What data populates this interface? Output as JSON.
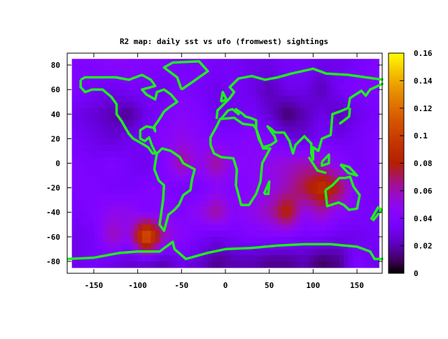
{
  "chart_data": {
    "type": "heatmap",
    "title": "R2 map: daily sst vs ufo (fromwest) sightings",
    "xlabel": "",
    "ylabel": "",
    "xlim": [
      -180,
      180
    ],
    "ylim": [
      -90,
      90
    ],
    "xticks": [
      "-150",
      "-100",
      "-50",
      "0",
      "50",
      "100",
      "150"
    ],
    "yticks": [
      "80",
      "60",
      "40",
      "20",
      "0",
      "-20",
      "-40",
      "-60",
      "-80"
    ],
    "colorbar": {
      "range": [
        0,
        0.16
      ],
      "ticks": [
        "0",
        "0.02",
        "0.04",
        "0.06",
        "0.08",
        "0.1",
        "0.12",
        "0.14",
        "0.16"
      ],
      "palette": "black-blue-purple-red-orange-yellow"
    },
    "grid_lon_centers": [
      -170,
      -150,
      -130,
      -110,
      -90,
      -70,
      -50,
      -30,
      -10,
      10,
      30,
      50,
      70,
      90,
      110,
      130,
      150,
      170
    ],
    "grid_lat_centers": [
      80,
      60,
      40,
      20,
      0,
      -20,
      -40,
      -60,
      -80
    ],
    "values": [
      [
        0.04,
        0.04,
        0.045,
        0.045,
        0.04,
        0.04,
        0.035,
        0.04,
        0.035,
        0.035,
        0.03,
        0.03,
        0.035,
        0.035,
        0.03,
        0.03,
        0.035,
        0.04
      ],
      [
        0.04,
        0.035,
        0.03,
        0.035,
        0.035,
        0.03,
        0.04,
        0.035,
        0.03,
        0.035,
        0.03,
        0.02,
        0.03,
        0.03,
        0.02,
        0.035,
        0.04,
        0.04
      ],
      [
        0.03,
        0.025,
        0.02,
        0.015,
        0.03,
        0.04,
        0.045,
        0.04,
        0.03,
        0.03,
        0.035,
        0.025,
        0.01,
        0.02,
        0.03,
        0.02,
        0.03,
        0.035
      ],
      [
        0.035,
        0.03,
        0.025,
        0.03,
        0.035,
        0.045,
        0.05,
        0.045,
        0.04,
        0.04,
        0.045,
        0.04,
        0.03,
        0.025,
        0.035,
        0.03,
        0.035,
        0.04
      ],
      [
        0.04,
        0.035,
        0.04,
        0.035,
        0.03,
        0.04,
        0.065,
        0.05,
        0.065,
        0.045,
        0.045,
        0.05,
        0.055,
        0.06,
        0.055,
        0.045,
        0.035,
        0.04
      ],
      [
        0.04,
        0.04,
        0.035,
        0.035,
        0.04,
        0.04,
        0.035,
        0.035,
        0.045,
        0.04,
        0.045,
        0.05,
        0.06,
        0.075,
        0.095,
        0.075,
        0.04,
        0.035
      ],
      [
        0.035,
        0.04,
        0.05,
        0.05,
        0.04,
        0.045,
        0.04,
        0.05,
        0.065,
        0.045,
        0.05,
        0.06,
        0.085,
        0.05,
        0.06,
        0.045,
        0.04,
        0.035
      ],
      [
        0.03,
        0.035,
        0.06,
        0.05,
        0.12,
        0.06,
        0.045,
        0.035,
        0.03,
        0.035,
        0.04,
        0.04,
        0.04,
        0.035,
        0.035,
        0.03,
        0.03,
        0.035
      ],
      [
        0.03,
        0.035,
        0.03,
        0.025,
        0.025,
        0.02,
        0.03,
        0.025,
        0.015,
        0.02,
        0.02,
        0.015,
        0.015,
        0.02,
        0.01,
        0.015,
        0.04,
        0.03
      ]
    ],
    "overlay_color": "#1ef01e",
    "coastlines": [
      [
        [
          -165,
          68
        ],
        [
          -160,
          70
        ],
        [
          -140,
          70
        ],
        [
          -125,
          70
        ],
        [
          -110,
          68
        ],
        [
          -95,
          72
        ],
        [
          -85,
          68
        ],
        [
          -80,
          63
        ],
        [
          -95,
          60
        ],
        [
          -90,
          56
        ],
        [
          -80,
          52
        ],
        [
          -78,
          58
        ],
        [
          -70,
          60
        ],
        [
          -62,
          56
        ],
        [
          -55,
          50
        ],
        [
          -65,
          45
        ],
        [
          -70,
          42
        ],
        [
          -76,
          35
        ],
        [
          -81,
          30
        ],
        [
          -80,
          26
        ],
        [
          -82,
          29
        ],
        [
          -90,
          30
        ],
        [
          -97,
          27
        ],
        [
          -97,
          20
        ],
        [
          -92,
          18
        ],
        [
          -87,
          21
        ],
        [
          -84,
          15
        ],
        [
          -80,
          9
        ],
        [
          -78,
          8
        ],
        [
          -83,
          8
        ],
        [
          -88,
          13
        ],
        [
          -95,
          16
        ],
        [
          -105,
          20
        ],
        [
          -110,
          24
        ],
        [
          -115,
          30
        ],
        [
          -118,
          34
        ],
        [
          -124,
          40
        ],
        [
          -124,
          48
        ],
        [
          -130,
          54
        ],
        [
          -140,
          60
        ],
        [
          -152,
          60
        ],
        [
          -160,
          58
        ],
        [
          -165,
          62
        ],
        [
          -165,
          68
        ]
      ],
      [
        [
          -78,
          8
        ],
        [
          -72,
          12
        ],
        [
          -62,
          10
        ],
        [
          -52,
          5
        ],
        [
          -48,
          0
        ],
        [
          -35,
          -5
        ],
        [
          -38,
          -13
        ],
        [
          -40,
          -22
        ],
        [
          -48,
          -26
        ],
        [
          -53,
          -34
        ],
        [
          -58,
          -38
        ],
        [
          -65,
          -42
        ],
        [
          -68,
          -50
        ],
        [
          -70,
          -55
        ],
        [
          -75,
          -50
        ],
        [
          -73,
          -40
        ],
        [
          -71,
          -30
        ],
        [
          -70,
          -18
        ],
        [
          -76,
          -14
        ],
        [
          -81,
          -5
        ],
        [
          -80,
          0
        ],
        [
          -78,
          8
        ]
      ],
      [
        [
          -17,
          15
        ],
        [
          -17,
          21
        ],
        [
          -10,
          30
        ],
        [
          -6,
          36
        ],
        [
          10,
          37
        ],
        [
          20,
          32
        ],
        [
          32,
          31
        ],
        [
          35,
          28
        ],
        [
          43,
          12
        ],
        [
          51,
          12
        ],
        [
          42,
          0
        ],
        [
          40,
          -15
        ],
        [
          35,
          -25
        ],
        [
          27,
          -34
        ],
        [
          18,
          -34
        ],
        [
          12,
          -18
        ],
        [
          13,
          -5
        ],
        [
          9,
          4
        ],
        [
          -5,
          5
        ],
        [
          -13,
          8
        ],
        [
          -17,
          15
        ]
      ],
      [
        [
          -10,
          36
        ],
        [
          -9,
          43
        ],
        [
          -2,
          48
        ],
        [
          5,
          53
        ],
        [
          10,
          58
        ],
        [
          5,
          62
        ],
        [
          15,
          69
        ],
        [
          30,
          71
        ],
        [
          45,
          68
        ],
        [
          60,
          70
        ],
        [
          75,
          73
        ],
        [
          100,
          77
        ],
        [
          115,
          73
        ],
        [
          140,
          72
        ],
        [
          160,
          70
        ],
        [
          180,
          68
        ]
      ],
      [
        [
          180,
          65
        ],
        [
          165,
          60
        ],
        [
          160,
          55
        ],
        [
          155,
          59
        ],
        [
          142,
          53
        ],
        [
          140,
          45
        ],
        [
          130,
          42
        ],
        [
          122,
          40
        ],
        [
          121,
          31
        ],
        [
          120,
          23
        ],
        [
          110,
          20
        ],
        [
          106,
          10
        ],
        [
          100,
          13
        ],
        [
          100,
          3
        ],
        [
          98,
          8
        ],
        [
          98,
          16
        ],
        [
          90,
          22
        ],
        [
          80,
          15
        ],
        [
          77,
          8
        ],
        [
          73,
          18
        ],
        [
          67,
          25
        ],
        [
          57,
          25
        ],
        [
          52,
          28
        ],
        [
          48,
          30
        ],
        [
          56,
          22
        ],
        [
          58,
          18
        ],
        [
          52,
          15
        ],
        [
          43,
          13
        ],
        [
          38,
          20
        ],
        [
          35,
          28
        ],
        [
          35,
          35
        ],
        [
          28,
          37
        ],
        [
          23,
          38
        ],
        [
          20,
          40
        ],
        [
          12,
          44
        ],
        [
          15,
          40
        ],
        [
          8,
          44
        ],
        [
          3,
          43
        ],
        [
          -5,
          36
        ]
      ],
      [
        [
          114,
          -22
        ],
        [
          122,
          -18
        ],
        [
          130,
          -12
        ],
        [
          137,
          -12
        ],
        [
          142,
          -11
        ],
        [
          146,
          -19
        ],
        [
          153,
          -26
        ],
        [
          150,
          -37
        ],
        [
          141,
          -38
        ],
        [
          135,
          -34
        ],
        [
          129,
          -32
        ],
        [
          116,
          -35
        ],
        [
          114,
          -22
        ]
      ],
      [
        [
          -180,
          -78
        ],
        [
          -150,
          -77
        ],
        [
          -120,
          -73
        ],
        [
          -100,
          -72
        ],
        [
          -75,
          -72
        ],
        [
          -60,
          -64
        ],
        [
          -58,
          -70
        ],
        [
          -45,
          -78
        ],
        [
          -20,
          -73
        ],
        [
          0,
          -70
        ],
        [
          30,
          -69
        ],
        [
          60,
          -67
        ],
        [
          90,
          -66
        ],
        [
          120,
          -66
        ],
        [
          150,
          -68
        ],
        [
          165,
          -72
        ],
        [
          170,
          -78
        ],
        [
          180,
          -78
        ]
      ],
      [
        [
          -50,
          60
        ],
        [
          -55,
          70
        ],
        [
          -70,
          78
        ],
        [
          -60,
          82
        ],
        [
          -30,
          83
        ],
        [
          -20,
          75
        ],
        [
          -40,
          65
        ],
        [
          -50,
          60
        ]
      ],
      [
        [
          110,
          1
        ],
        [
          118,
          7
        ],
        [
          118,
          0
        ],
        [
          110,
          -2
        ],
        [
          110,
          1
        ]
      ],
      [
        [
          95,
          5
        ],
        [
          105,
          -6
        ],
        [
          115,
          -8
        ]
      ],
      [
        [
          130,
          32
        ],
        [
          141,
          38
        ],
        [
          142,
          45
        ]
      ],
      [
        [
          44,
          -25
        ],
        [
          50,
          -15
        ],
        [
          49,
          -25
        ],
        [
          44,
          -25
        ]
      ],
      [
        [
          131,
          -1
        ],
        [
          141,
          -3
        ],
        [
          150,
          -10
        ],
        [
          140,
          -8
        ],
        [
          131,
          -1
        ]
      ],
      [
        [
          -5,
          50
        ],
        [
          -3,
          58
        ],
        [
          1,
          52
        ],
        [
          -5,
          50
        ]
      ],
      [
        [
          166,
          -46
        ],
        [
          174,
          -36
        ],
        [
          178,
          -38
        ],
        [
          168,
          -47
        ]
      ]
    ]
  }
}
